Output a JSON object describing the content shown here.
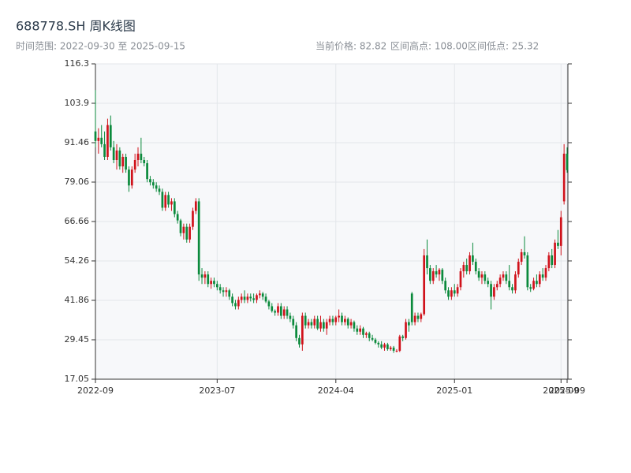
{
  "chart_data": {
    "type": "candlestick",
    "title": "688778.SH 周K线图",
    "subtitle": "时间范围: 2022-09-30 至 2025-09-15",
    "stats": [
      "当前价格: 82.82",
      "区间高点: 108.00",
      "区间低点: 25.32"
    ],
    "up_color": "#d0121b",
    "down_color": "#0b8a3c",
    "grid": true,
    "ylim": [
      17.05,
      116.26
    ],
    "yticks": [
      17.05,
      29.45,
      41.86,
      54.26,
      66.66,
      79.06,
      91.46,
      {
        "value": 103.86,
        "label": "103.9"
      },
      {
        "value": 116.26,
        "label": "116.3"
      }
    ],
    "xticks": [
      {
        "value": "2022-09-30",
        "label": "2022-09"
      },
      {
        "value": "2023-07-07",
        "label": "2023-07"
      },
      {
        "value": "2024-04-05",
        "label": "2024-04"
      },
      {
        "value": "2025-01-03",
        "label": "2025-01"
      },
      {
        "value": "2025-09-05",
        "label": "2025-09"
      },
      {
        "value": "2025-09-15",
        "label": "2025-09"
      }
    ],
    "x": [
      "2022-09-30",
      "2022-10-07",
      "2022-10-14",
      "2022-10-21",
      "2022-10-28",
      "2022-11-04",
      "2022-11-11",
      "2022-11-18",
      "2022-11-25",
      "2022-12-02",
      "2022-12-09",
      "2022-12-16",
      "2022-12-23",
      "2022-12-30",
      "2023-01-06",
      "2023-01-13",
      "2023-01-20",
      "2023-01-27",
      "2023-02-03",
      "2023-02-10",
      "2023-02-17",
      "2023-02-24",
      "2023-03-03",
      "2023-03-10",
      "2023-03-17",
      "2023-03-24",
      "2023-03-31",
      "2023-04-07",
      "2023-04-14",
      "2023-04-21",
      "2023-04-28",
      "2023-05-05",
      "2023-05-12",
      "2023-05-19",
      "2023-05-26",
      "2023-06-02",
      "2023-06-09",
      "2023-06-16",
      "2023-06-23",
      "2023-06-30",
      "2023-07-07",
      "2023-07-14",
      "2023-07-21",
      "2023-07-28",
      "2023-08-04",
      "2023-08-11",
      "2023-08-18",
      "2023-08-25",
      "2023-09-01",
      "2023-09-08",
      "2023-09-15",
      "2023-09-22",
      "2023-09-29",
      "2023-10-06",
      "2023-10-13",
      "2023-10-20",
      "2023-10-27",
      "2023-11-03",
      "2023-11-10",
      "2023-11-17",
      "2023-11-24",
      "2023-12-01",
      "2023-12-08",
      "2023-12-15",
      "2023-12-22",
      "2023-12-29",
      "2024-01-05",
      "2024-01-12",
      "2024-01-19",
      "2024-01-26",
      "2024-02-02",
      "2024-02-09",
      "2024-02-16",
      "2024-02-23",
      "2024-03-01",
      "2024-03-08",
      "2024-03-15",
      "2024-03-22",
      "2024-03-29",
      "2024-04-05",
      "2024-04-12",
      "2024-04-19",
      "2024-04-26",
      "2024-05-03",
      "2024-05-10",
      "2024-05-17",
      "2024-05-24",
      "2024-05-31",
      "2024-06-07",
      "2024-06-14",
      "2024-06-21",
      "2024-06-28",
      "2024-07-05",
      "2024-07-12",
      "2024-07-19",
      "2024-07-26",
      "2024-08-02",
      "2024-08-09",
      "2024-08-16",
      "2024-08-23",
      "2024-08-30",
      "2024-09-06",
      "2024-09-13",
      "2024-09-20",
      "2024-09-27",
      "2024-10-04",
      "2024-10-11",
      "2024-10-18",
      "2024-10-25",
      "2024-11-01",
      "2024-11-08",
      "2024-11-15",
      "2024-11-22",
      "2024-11-29",
      "2024-12-06",
      "2024-12-13",
      "2024-12-20",
      "2024-12-27",
      "2025-01-03",
      "2025-01-10",
      "2025-01-17",
      "2025-01-24",
      "2025-01-31",
      "2025-02-07",
      "2025-02-14",
      "2025-02-21",
      "2025-02-28",
      "2025-03-07",
      "2025-03-14",
      "2025-03-21",
      "2025-03-28",
      "2025-04-04",
      "2025-04-11",
      "2025-04-18",
      "2025-04-25",
      "2025-05-02",
      "2025-05-09",
      "2025-05-16",
      "2025-05-23",
      "2025-05-30",
      "2025-06-06",
      "2025-06-13",
      "2025-06-20",
      "2025-06-27",
      "2025-07-04",
      "2025-07-11",
      "2025-07-18",
      "2025-07-25",
      "2025-08-01",
      "2025-08-08",
      "2025-08-15",
      "2025-08-22",
      "2025-08-29",
      "2025-09-05",
      "2025-09-12",
      "2025-09-15"
    ],
    "ohlc": [
      [
        95,
        108,
        90,
        92
      ],
      [
        92,
        96,
        88,
        93
      ],
      [
        93,
        97,
        90,
        91
      ],
      [
        91,
        95,
        86,
        87
      ],
      [
        87,
        99,
        86,
        97
      ],
      [
        97,
        100,
        89,
        90
      ],
      [
        90,
        92,
        85,
        86
      ],
      [
        86,
        91,
        83,
        89
      ],
      [
        89,
        90,
        83,
        84
      ],
      [
        84,
        88,
        82,
        87
      ],
      [
        87,
        88,
        82,
        83
      ],
      [
        83,
        84,
        76,
        78
      ],
      [
        78,
        84,
        77,
        83
      ],
      [
        83,
        88,
        82,
        86
      ],
      [
        86,
        90,
        84,
        88
      ],
      [
        88,
        93,
        85,
        86
      ],
      [
        86,
        87,
        84,
        85
      ],
      [
        85,
        86,
        79,
        80
      ],
      [
        80,
        81,
        78,
        79
      ],
      [
        79,
        80,
        77,
        78
      ],
      [
        78,
        79,
        76,
        77
      ],
      [
        77,
        78,
        75,
        76
      ],
      [
        76,
        77,
        70,
        71
      ],
      [
        71,
        76,
        70,
        75
      ],
      [
        75,
        76,
        71,
        72
      ],
      [
        72,
        74,
        70,
        73
      ],
      [
        73,
        74,
        68,
        69
      ],
      [
        69,
        70,
        66,
        67
      ],
      [
        67,
        67.5,
        62,
        63
      ],
      [
        63,
        66,
        61,
        65
      ],
      [
        65,
        66,
        60,
        61
      ],
      [
        61,
        66,
        60,
        65
      ],
      [
        65,
        71,
        64,
        70
      ],
      [
        70,
        74,
        69,
        73
      ],
      [
        73,
        74,
        48,
        50
      ],
      [
        50,
        52,
        47,
        49
      ],
      [
        49,
        51,
        47,
        50
      ],
      [
        50,
        51,
        46,
        47
      ],
      [
        47,
        49,
        45.5,
        48
      ],
      [
        48,
        49,
        46,
        47
      ],
      [
        47,
        48,
        45,
        46
      ],
      [
        46,
        47,
        44,
        45
      ],
      [
        45,
        46,
        43,
        44.5
      ],
      [
        44.5,
        46,
        43,
        45
      ],
      [
        45,
        45.5,
        42,
        43
      ],
      [
        43,
        44,
        40,
        41
      ],
      [
        41,
        42,
        39,
        40
      ],
      [
        40,
        43,
        39,
        42
      ],
      [
        42,
        44,
        41,
        43
      ],
      [
        43,
        45,
        41,
        42
      ],
      [
        42,
        44,
        41,
        43
      ],
      [
        43,
        44,
        41.5,
        42.5
      ],
      [
        42.5,
        44,
        41,
        42
      ],
      [
        42,
        44,
        41,
        43.5
      ],
      [
        43.5,
        45,
        42.5,
        44
      ],
      [
        44,
        44.5,
        42,
        43
      ],
      [
        43,
        44,
        41,
        41.5
      ],
      [
        41.5,
        42,
        39,
        40
      ],
      [
        40,
        41,
        38,
        38.5
      ],
      [
        38.5,
        39,
        37,
        38
      ],
      [
        38,
        41,
        37,
        40
      ],
      [
        40,
        41,
        36,
        37
      ],
      [
        37,
        40,
        36,
        39
      ],
      [
        39,
        40,
        36,
        37
      ],
      [
        37,
        38,
        35,
        36
      ],
      [
        36,
        37,
        33,
        34
      ],
      [
        34,
        35,
        29,
        30
      ],
      [
        30,
        31,
        27,
        28
      ],
      [
        28,
        38,
        26,
        37
      ],
      [
        37,
        38,
        33,
        34
      ],
      [
        34,
        36,
        33,
        35
      ],
      [
        35,
        36,
        33,
        34
      ],
      [
        34,
        37,
        33,
        36
      ],
      [
        36,
        37,
        32.5,
        33
      ],
      [
        33,
        37,
        32,
        35
      ],
      [
        35,
        36,
        32,
        33
      ],
      [
        33,
        36,
        31,
        35
      ],
      [
        35,
        37,
        34,
        36
      ],
      [
        36,
        37,
        34,
        35
      ],
      [
        35,
        37,
        34,
        36.5
      ],
      [
        36.5,
        39,
        35,
        37
      ],
      [
        37,
        38,
        34,
        35
      ],
      [
        35,
        37,
        34,
        36
      ],
      [
        36,
        36.5,
        33,
        34
      ],
      [
        34,
        36,
        33,
        35
      ],
      [
        35,
        35.5,
        32,
        33
      ],
      [
        33,
        34,
        31,
        32
      ],
      [
        32,
        34,
        31,
        33
      ],
      [
        33,
        33.5,
        30,
        31
      ],
      [
        31,
        32,
        30,
        31.5
      ],
      [
        31.5,
        32,
        29,
        30
      ],
      [
        30,
        31,
        29,
        29.5
      ],
      [
        29.5,
        30,
        28,
        28.5
      ],
      [
        28.5,
        29,
        27,
        28
      ],
      [
        28,
        29,
        26.5,
        27
      ],
      [
        27,
        28.5,
        26,
        28
      ],
      [
        28,
        28.5,
        26,
        26.5
      ],
      [
        26.5,
        27.5,
        26,
        27
      ],
      [
        27,
        27.5,
        25.32,
        26
      ],
      [
        26,
        26.5,
        25.5,
        26
      ],
      [
        26,
        31,
        25.6,
        30.5
      ],
      [
        30.5,
        31,
        29,
        30
      ],
      [
        30,
        36,
        29.5,
        35
      ],
      [
        35,
        36,
        32,
        34
      ],
      [
        44,
        44.5,
        34,
        35
      ],
      [
        35,
        38,
        34,
        37
      ],
      [
        37,
        38,
        35,
        36
      ],
      [
        36,
        38,
        35,
        37.5
      ],
      [
        37.5,
        58,
        37,
        56
      ],
      [
        56,
        61,
        50,
        52
      ],
      [
        52,
        53,
        47,
        48
      ],
      [
        48,
        52,
        47,
        51
      ],
      [
        51,
        53,
        49,
        50
      ],
      [
        50,
        52,
        48,
        51.5
      ],
      [
        51.5,
        52,
        47,
        48
      ],
      [
        48,
        49,
        44,
        45
      ],
      [
        45,
        46,
        42,
        43
      ],
      [
        43,
        46,
        42,
        45
      ],
      [
        45,
        47,
        43,
        44
      ],
      [
        44,
        47,
        43,
        46
      ],
      [
        46,
        52,
        45,
        51
      ],
      [
        51,
        54,
        49,
        53
      ],
      [
        53,
        55,
        50,
        51
      ],
      [
        51,
        57,
        50,
        56
      ],
      [
        56,
        60,
        53,
        54
      ],
      [
        54,
        55,
        50,
        51
      ],
      [
        51,
        52,
        48,
        49
      ],
      [
        49,
        51,
        47,
        50
      ],
      [
        50,
        51,
        47,
        48
      ],
      [
        48,
        49,
        46,
        47
      ],
      [
        47,
        48,
        39,
        43
      ],
      [
        43,
        47,
        42,
        46
      ],
      [
        46,
        48,
        45,
        47
      ],
      [
        47,
        50,
        46,
        49
      ],
      [
        49,
        51,
        48,
        50
      ],
      [
        50,
        51,
        47,
        48
      ],
      [
        48,
        53,
        45,
        46
      ],
      [
        46,
        47,
        44,
        45
      ],
      [
        45,
        51,
        44,
        50
      ],
      [
        50,
        55,
        49,
        54
      ],
      [
        54,
        58,
        53,
        57
      ],
      [
        57,
        62,
        55,
        56
      ],
      [
        56,
        57,
        45,
        46
      ],
      [
        46,
        47,
        44.5,
        45.5
      ],
      [
        45.5,
        49,
        45,
        48
      ],
      [
        48,
        50,
        46,
        47
      ],
      [
        47,
        51,
        46,
        50
      ],
      [
        50,
        52,
        48,
        49
      ],
      [
        49,
        53,
        48,
        52
      ],
      [
        52,
        57,
        51,
        56
      ],
      [
        56,
        58,
        52,
        53
      ],
      [
        53,
        61,
        52,
        60
      ],
      [
        60,
        64,
        58,
        59
      ],
      [
        59,
        70,
        56,
        68
      ],
      [
        73,
        91,
        72,
        88
      ],
      [
        88,
        90,
        82,
        82.82
      ]
    ]
  }
}
